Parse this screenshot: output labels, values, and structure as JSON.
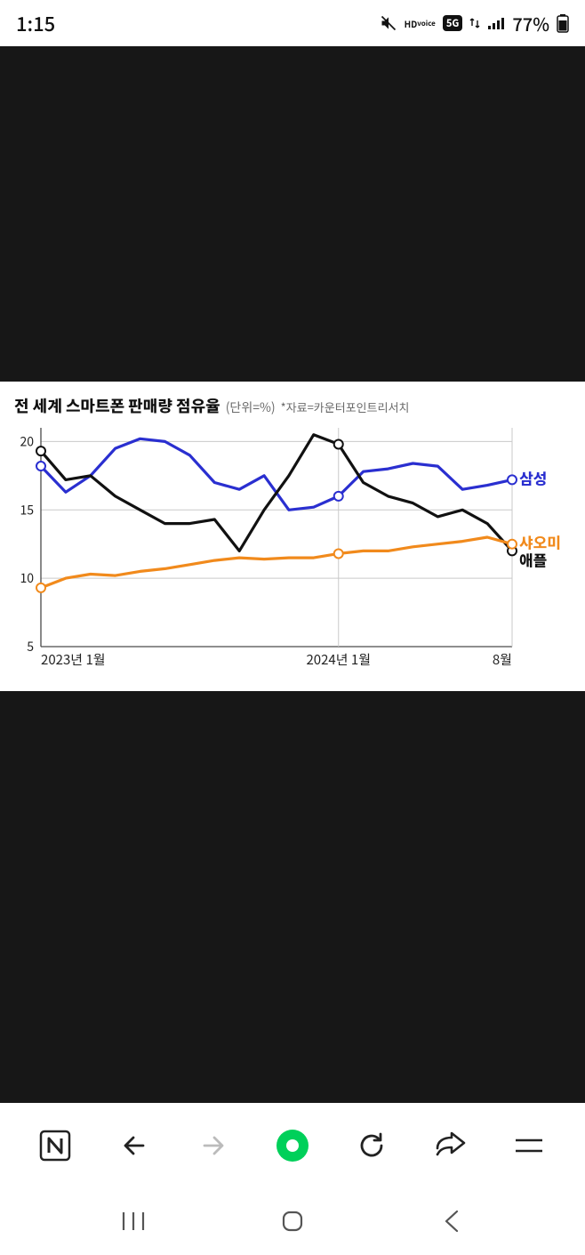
{
  "status": {
    "time": "1:15",
    "battery_pct": "77%",
    "icons": {
      "mute": "mute-icon",
      "hd_voice_top": "HD",
      "hd_voice_bottom": "voice",
      "fiveg": "5G",
      "signal": "signal-icon",
      "battery": "battery-icon"
    }
  },
  "chart": {
    "type": "line",
    "title": "전 세계 스마트폰 판매량 점유율",
    "unit": "(단위=%)",
    "source": "*자료=카운터포인트리서치",
    "title_fontsize": 18,
    "unit_fontsize": 14,
    "source_fontsize": 13,
    "background_color": "#ffffff",
    "plot": {
      "x_count": 20,
      "ylim": [
        5,
        21
      ],
      "yticks": [
        5,
        10,
        15,
        20
      ],
      "ytick_fontsize": 14,
      "ytick_color": "#222222",
      "grid_color": "#c9c9c9",
      "axis_color": "#4a4a4a",
      "vline_indices": [
        0,
        12,
        19
      ],
      "line_width": 3.2,
      "marker_radius": 5,
      "marker_stroke": 2,
      "x_labels": [
        {
          "i": 0,
          "text": "2023년 1월"
        },
        {
          "i": 12,
          "text": "2024년 1월"
        },
        {
          "i": 19,
          "text": "8월"
        }
      ],
      "x_label_fontsize": 15,
      "x_label_color": "#222222",
      "series": [
        {
          "key": "samsung",
          "label": "삼성",
          "color": "#2a2fd0",
          "label_color": "#2a2fd0",
          "label_fontweight": 800,
          "values": [
            18.2,
            16.3,
            17.5,
            19.5,
            20.2,
            20.0,
            19.0,
            17.0,
            16.5,
            17.5,
            15.0,
            15.2,
            16.0,
            17.8,
            18.0,
            18.4,
            18.2,
            16.5,
            16.8,
            17.2
          ],
          "markers": [
            {
              "i": 0,
              "v": 18.2
            },
            {
              "i": 12,
              "v": 16.0
            },
            {
              "i": 19,
              "v": 17.2
            }
          ]
        },
        {
          "key": "apple",
          "label": "애플",
          "color": "#111111",
          "label_color": "#111111",
          "label_fontweight": 800,
          "values": [
            19.3,
            17.2,
            17.5,
            16.0,
            15.0,
            14.0,
            14.0,
            14.3,
            12.0,
            15.0,
            17.5,
            20.5,
            19.8,
            17.0,
            16.0,
            15.5,
            14.5,
            15.0,
            14.0,
            12.0
          ],
          "markers": [
            {
              "i": 0,
              "v": 19.3
            },
            {
              "i": 12,
              "v": 19.8
            },
            {
              "i": 19,
              "v": 12.0
            }
          ]
        },
        {
          "key": "xiaomi",
          "label": "샤오미",
          "color": "#f18a1c",
          "label_color": "#f18a1c",
          "label_fontweight": 800,
          "values": [
            9.3,
            10.0,
            10.3,
            10.2,
            10.5,
            10.7,
            11.0,
            11.3,
            11.5,
            11.4,
            11.5,
            11.5,
            11.8,
            12.0,
            12.0,
            12.3,
            12.5,
            12.7,
            13.0,
            12.5
          ],
          "markers": [
            {
              "i": 0,
              "v": 9.3
            },
            {
              "i": 12,
              "v": 11.8
            },
            {
              "i": 19,
              "v": 12.5
            }
          ]
        }
      ],
      "legend_order": [
        "samsung",
        "xiaomi",
        "apple"
      ],
      "legend_fontsize": 17
    }
  },
  "browser_nav": {
    "logo": "N",
    "logo_color": "#222222",
    "back": "back",
    "forward": "forward",
    "forward_enabled": false,
    "home_circle_color": "#00d05a",
    "home_inner_color": "#ffffff",
    "refresh": "refresh",
    "share": "share",
    "menu": "menu"
  },
  "sys_nav": {
    "recents": "recents",
    "home": "home",
    "back": "back",
    "color": "#555555"
  }
}
